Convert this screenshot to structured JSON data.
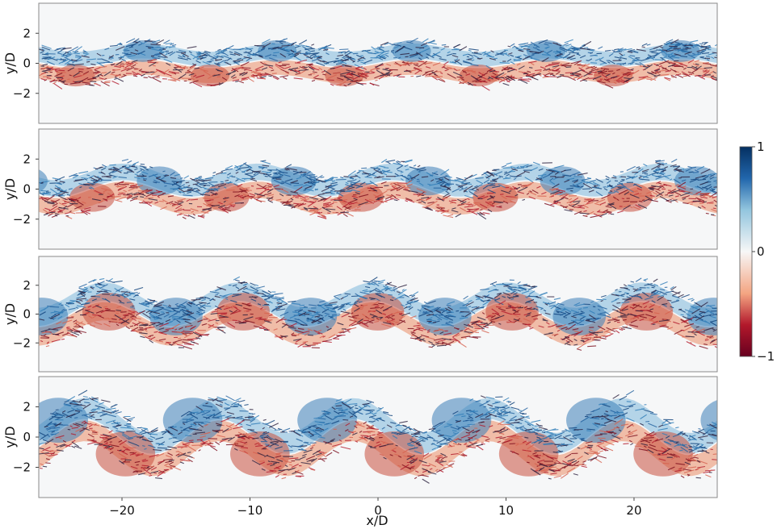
{
  "chart_data": {
    "type": "heatmap",
    "panels": [
      {
        "name": "",
        "amplitude": 0.5,
        "width": 0.9
      },
      {
        "name": "",
        "amplitude": 1.0,
        "width": 1.0
      },
      {
        "name": "",
        "amplitude": 1.6,
        "width": 1.15
      },
      {
        "name": "",
        "amplitude": 2.1,
        "width": 1.25
      }
    ],
    "xlabel": "x/D",
    "ylabel": "y/D",
    "xlim": [
      -26.5,
      26.5
    ],
    "ylim": [
      -4,
      4
    ],
    "x_ticks": [
      -20,
      -10,
      0,
      10,
      20
    ],
    "x_tick_labels": [
      "−20",
      "−10",
      "0",
      "10",
      "20"
    ],
    "y_ticks": [
      -2,
      0,
      2
    ],
    "y_tick_labels": [
      "−2",
      "0",
      "2"
    ],
    "colorbar": {
      "ticks": [
        -1,
        0,
        1
      ],
      "tick_labels": [
        "−1",
        "0",
        "1"
      ],
      "colormap": "RdBu",
      "min": -1,
      "max": 1,
      "colors": {
        "positive": "#0b3d78",
        "mid": "#f7f7f7",
        "negative": "#7a0a1a"
      }
    },
    "grid": false,
    "vortex_wavelength_xD": 10.5
  }
}
